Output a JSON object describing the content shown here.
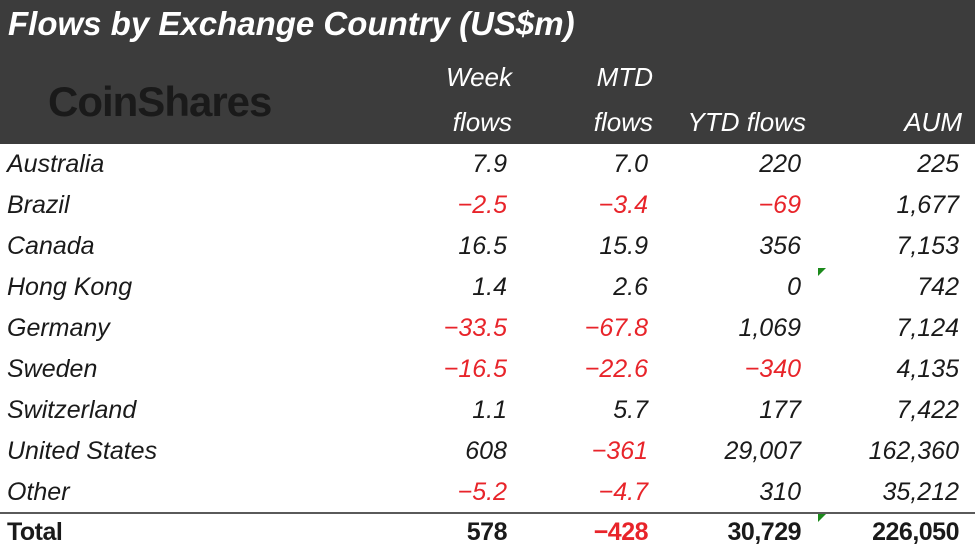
{
  "header": {
    "title": "Flows by Exchange Country (US$m)",
    "logo": "CoinShares"
  },
  "columns": {
    "week_l1": "Week",
    "week_l2": "flows",
    "mtd_l1": "MTD",
    "mtd_l2": "flows",
    "ytd": "YTD flows",
    "aum": "AUM"
  },
  "colors": {
    "header_bg": "#3c3c3c",
    "negative": "#e8242a",
    "text": "#1a1a1a",
    "flag": "#1c8a1c"
  },
  "chart_data": {
    "type": "table",
    "title": "Flows by Exchange Country (US$m)",
    "columns": [
      "Week flows",
      "MTD flows",
      "YTD flows",
      "AUM"
    ],
    "rows": [
      {
        "name": "Australia",
        "week": "7.9",
        "mtd": "7.0",
        "ytd": "220",
        "aum": "225"
      },
      {
        "name": "Brazil",
        "week": "-2.5",
        "mtd": "-3.4",
        "ytd": "-69",
        "aum": "1,677"
      },
      {
        "name": "Canada",
        "week": "16.5",
        "mtd": "15.9",
        "ytd": "356",
        "aum": "7,153"
      },
      {
        "name": "Hong Kong",
        "week": "1.4",
        "mtd": "2.6",
        "ytd": "0",
        "aum": "742"
      },
      {
        "name": "Germany",
        "week": "-33.5",
        "mtd": "-67.8",
        "ytd": "1,069",
        "aum": "7,124"
      },
      {
        "name": "Sweden",
        "week": "-16.5",
        "mtd": "-22.6",
        "ytd": "-340",
        "aum": "4,135"
      },
      {
        "name": "Switzerland",
        "week": "1.1",
        "mtd": "5.7",
        "ytd": "177",
        "aum": "7,422"
      },
      {
        "name": "United States",
        "week": "608",
        "mtd": "-361",
        "ytd": "29,007",
        "aum": "162,360"
      },
      {
        "name": "Other",
        "week": "-5.2",
        "mtd": "-4.7",
        "ytd": "310",
        "aum": "35,212"
      }
    ],
    "total": {
      "name": "Total",
      "week": "578",
      "mtd": "-428",
      "ytd": "30,729",
      "aum": "226,050"
    }
  }
}
